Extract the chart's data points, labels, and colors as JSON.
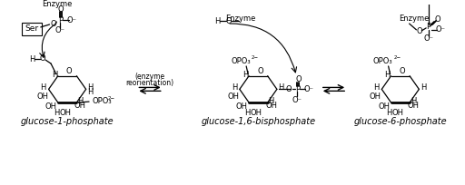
{
  "title": "",
  "bg_color": "#ffffff",
  "text_color": "#000000",
  "label1": "glucose-1-phosphate",
  "label2": "glucose-1,6-bisphosphate",
  "label3": "glucose-6-phosphate",
  "enzyme_label": "Enzyme",
  "ser_label": "Ser",
  "middle_label_line1": "(enzyme",
  "middle_label_line2": "reorientation)",
  "font_size_label": 7,
  "font_size_small": 6,
  "line_width": 0.9
}
